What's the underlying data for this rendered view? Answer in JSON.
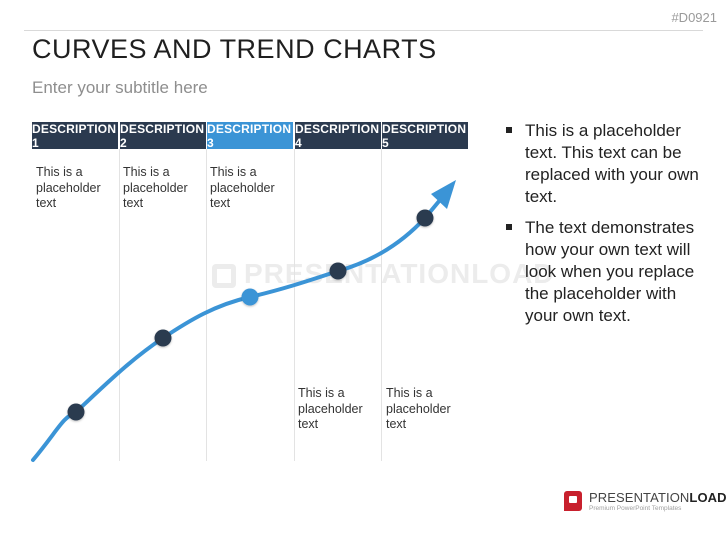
{
  "slide": {
    "id_label": "#D0921",
    "title": "CURVES AND TREND CHARTS",
    "subtitle": "Enter your subtitle here",
    "watermark": "PRESENTATIONLOAD"
  },
  "columns": [
    {
      "header": "DESCRIPTION 1",
      "text": "This is a placeholder text",
      "text_position": "top",
      "active": false
    },
    {
      "header": "DESCRIPTION 2",
      "text": "This is a placeholder text",
      "text_position": "top",
      "active": false
    },
    {
      "header": "DESCRIPTION 3",
      "text": "This is a placeholder text",
      "text_position": "top",
      "active": true
    },
    {
      "header": "DESCRIPTION 4",
      "text": "This is a placeholder text",
      "text_position": "bottom",
      "active": false
    },
    {
      "header": "DESCRIPTION 5",
      "text": "This is a placeholder text",
      "text_position": "bottom",
      "active": false
    }
  ],
  "bullets": [
    "This is a placeholder text. This text can be replaced with your own text.",
    "The text demonstrates how your own text will look when you replace the placeholder with your own text."
  ],
  "trend": {
    "milestones": [
      {
        "column": 1,
        "level": 0.18,
        "highlight": false
      },
      {
        "column": 2,
        "level": 0.4,
        "highlight": false
      },
      {
        "column": 3,
        "level": 0.55,
        "highlight": true
      },
      {
        "column": 4,
        "level": 0.63,
        "highlight": false
      },
      {
        "column": 5,
        "level": 0.84,
        "highlight": false
      }
    ]
  },
  "colors": {
    "header_bg": "#2b3a4f",
    "header_active_bg": "#3b94d6",
    "curve": "#3b94d6",
    "marker": "#2b3a4f",
    "marker_highlight": "#3b94d6"
  },
  "logo": {
    "name_light": "PRESENTATION",
    "name_bold": "LOAD",
    "tagline": "Premium PowerPoint Templates"
  }
}
